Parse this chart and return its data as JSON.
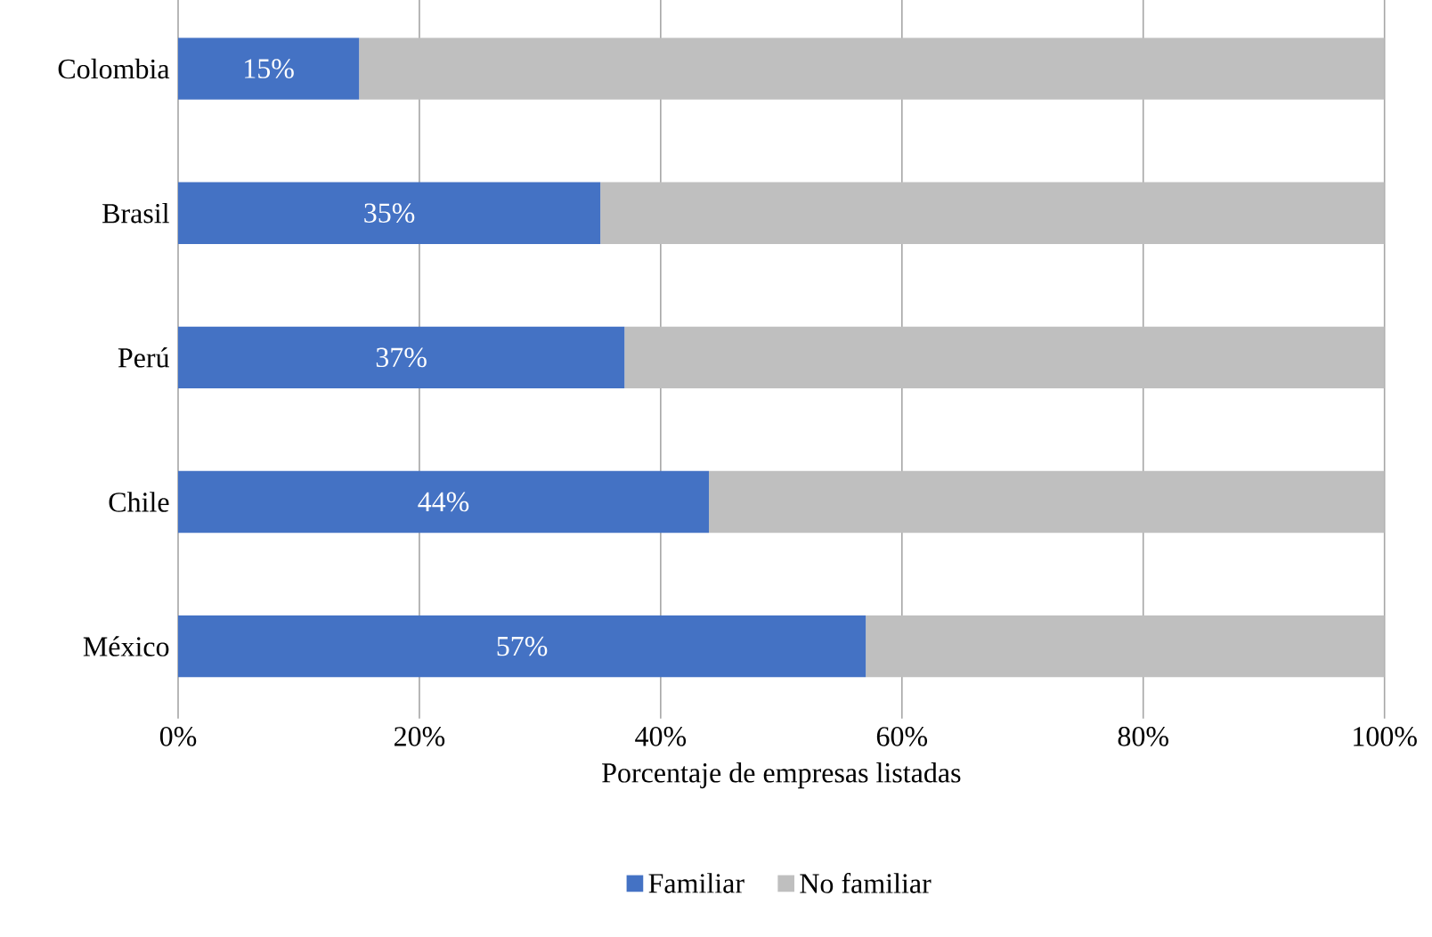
{
  "chart_data": {
    "type": "bar",
    "orientation": "horizontal",
    "stacked": true,
    "xlabel": "Porcentaje de empresas listadas",
    "categories": [
      "Colombia",
      "Brasil",
      "Perú",
      "Chile",
      "México"
    ],
    "series": [
      {
        "name": "Familiar",
        "color": "#4472c4",
        "values": [
          15,
          35,
          37,
          44,
          57
        ],
        "value_labels": [
          "15%",
          "35%",
          "37%",
          "44%",
          "57%"
        ]
      },
      {
        "name": "No familiar",
        "color": "#bfbfbf",
        "values": [
          85,
          65,
          63,
          56,
          43
        ]
      }
    ],
    "xlim": [
      0,
      100
    ],
    "xticks": [
      {
        "value": 0,
        "label": "0%"
      },
      {
        "value": 20,
        "label": "20%"
      },
      {
        "value": 40,
        "label": "40%"
      },
      {
        "value": 60,
        "label": "60%"
      },
      {
        "value": 80,
        "label": "80%"
      },
      {
        "value": 100,
        "label": "100%"
      }
    ],
    "grid": "x",
    "legend": "bottom"
  }
}
